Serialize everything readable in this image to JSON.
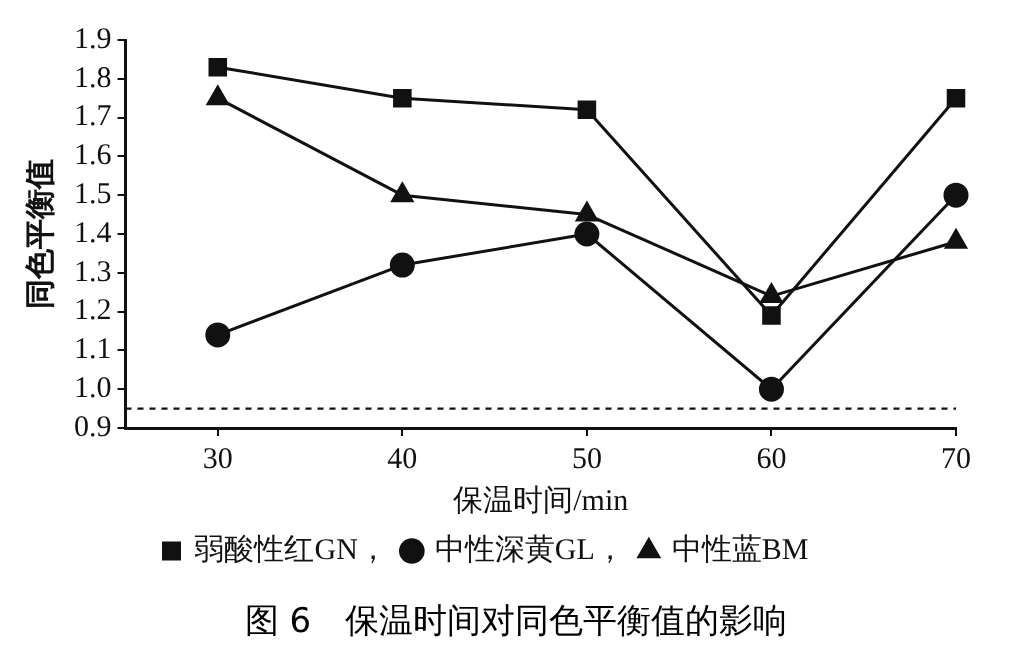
{
  "chart_data": {
    "type": "line",
    "title": "图 6　保温时间对同色平衡值的影响",
    "xlabel": "保温时间/min",
    "ylabel": "同色平衡值",
    "x": [
      30,
      40,
      50,
      60,
      70
    ],
    "series": [
      {
        "name": "弱酸性红GN，",
        "color": "#111111",
        "marker": "square",
        "values": [
          1.83,
          1.75,
          1.72,
          1.19,
          1.75
        ]
      },
      {
        "name": "中性深黄GL，",
        "color": "#111111",
        "marker": "circle",
        "values": [
          1.14,
          1.32,
          1.4,
          1.0,
          1.5
        ]
      },
      {
        "name": "中性蓝BM",
        "color": "#111111",
        "marker": "triangle",
        "values": [
          1.75,
          1.5,
          1.45,
          1.24,
          1.38
        ]
      }
    ],
    "xlim": [
      25,
      70
    ],
    "xticks": [
      30,
      40,
      50,
      60,
      70
    ],
    "ylim": [
      0.9,
      1.9
    ],
    "yticks": [
      0.9,
      {
        "value": 1,
        "label": "1.0"
      },
      1.1,
      1.2,
      1.3,
      1.4,
      1.5,
      1.6,
      1.7,
      1.8,
      1.9
    ],
    "ref_lines": [
      {
        "axis": "y",
        "value": 0.95,
        "line_style": "dashed",
        "color": "#111111"
      }
    ],
    "grid": false,
    "legend": "bottom",
    "line_style": "solid"
  }
}
